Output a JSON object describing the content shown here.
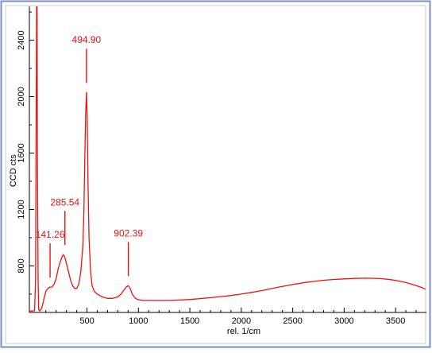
{
  "chart_data": {
    "type": "line",
    "xlabel": "rel. 1/cm",
    "ylabel": "CCD cts",
    "xlim": [
      -60,
      3800
    ],
    "ylim": [
      470,
      2640
    ],
    "x_ticks": [
      500,
      1000,
      1500,
      2000,
      2500,
      3000,
      3500
    ],
    "y_ticks": [
      800,
      1200,
      1600,
      2000,
      2400
    ],
    "grid": false,
    "series": [
      {
        "color": "#ee1111",
        "x": [
          -60,
          -30,
          -10,
          0,
          5,
          10,
          15,
          18,
          25,
          30,
          40,
          60,
          80,
          100,
          120,
          141,
          160,
          180,
          200,
          220,
          240,
          260,
          270,
          285,
          300,
          320,
          340,
          360,
          380,
          400,
          420,
          440,
          460,
          470,
          480,
          488,
          495,
          502,
          510,
          520,
          535,
          550,
          570,
          600,
          650,
          700,
          750,
          800,
          830,
          860,
          880,
          902,
          920,
          940,
          970,
          1000,
          1050,
          1100,
          1200,
          1300,
          1400,
          1500,
          1600,
          1700,
          1800,
          1900,
          2000,
          2100,
          2200,
          2300,
          2400,
          2500,
          2600,
          2700,
          2800,
          2900,
          3000,
          3100,
          3200,
          3300,
          3350,
          3400,
          3450,
          3500,
          3550,
          3600,
          3650,
          3700,
          3750,
          3790
        ],
        "y": [
          480,
          480,
          482,
          700,
          1600,
          2640,
          2640,
          1600,
          700,
          490,
          480,
          500,
          560,
          620,
          640,
          650,
          650,
          670,
          710,
          780,
          830,
          870,
          880,
          860,
          820,
          760,
          700,
          660,
          640,
          640,
          670,
          760,
          950,
          1200,
          1600,
          1900,
          2030,
          1850,
          1400,
          1000,
          760,
          660,
          620,
          600,
          580,
          570,
          570,
          580,
          600,
          630,
          650,
          660,
          640,
          600,
          570,
          560,
          555,
          555,
          555,
          555,
          558,
          562,
          568,
          575,
          582,
          590,
          600,
          612,
          625,
          640,
          655,
          668,
          680,
          690,
          698,
          704,
          708,
          711,
          713,
          712,
          710,
          707,
          703,
          697,
          690,
          682,
          672,
          660,
          648,
          635
        ]
      }
    ],
    "annotations": [
      {
        "label": "141.26",
        "x": 141.26,
        "y": 650
      },
      {
        "label": "285.54",
        "x": 285.54,
        "y": 880
      },
      {
        "label": "494.90",
        "x": 494.9,
        "y": 2030
      },
      {
        "label": "902.39",
        "x": 902.39,
        "y": 660
      }
    ],
    "colors": {
      "line": "#ee1111",
      "annotation": "#ee1111",
      "axes": "#000000",
      "frame": "#7a8fbf"
    }
  }
}
